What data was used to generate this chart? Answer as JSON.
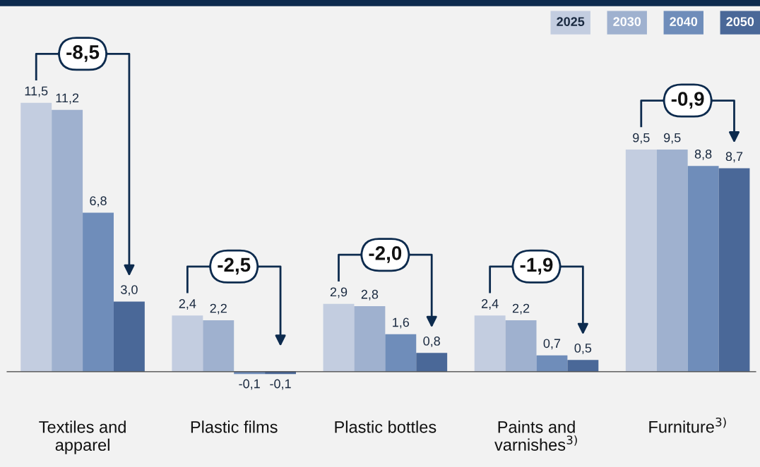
{
  "chart_data": {
    "type": "bar",
    "categories": [
      "Textiles and\napparel",
      "Plastic films",
      "Plastic bottles",
      "Paints and\nvarnishes$^{3)}$",
      "Furniture$^{3)}$"
    ],
    "series": [
      {
        "name": "2025",
        "color": "#c3cde0",
        "values": [
          11.5,
          2.4,
          2.9,
          2.4,
          9.5
        ],
        "value_labels": [
          "11,5",
          "2,4",
          "2,9",
          "2,4",
          "9,5"
        ]
      },
      {
        "name": "2030",
        "color": "#9fb1cf",
        "values": [
          11.2,
          2.2,
          2.8,
          2.2,
          9.5
        ],
        "value_labels": [
          "11,2",
          "2,2",
          "2,8",
          "2,2",
          "9,5"
        ]
      },
      {
        "name": "2040",
        "color": "#6f8dba",
        "values": [
          6.8,
          -0.1,
          1.6,
          0.7,
          8.8
        ],
        "value_labels": [
          "6,8",
          "-0,1",
          "1,6",
          "0,7",
          "8,8"
        ]
      },
      {
        "name": "2050",
        "color": "#4a6898",
        "values": [
          3.0,
          -0.1,
          0.8,
          0.5,
          8.7
        ],
        "value_labels": [
          "3,0",
          "-0,1",
          "0,8",
          "0,5",
          "8,7"
        ]
      }
    ],
    "legend": "top right",
    "annotations": [
      "-8,5",
      "-2,5",
      "-2,0",
      "-1,9",
      "-0,9"
    ]
  }
}
